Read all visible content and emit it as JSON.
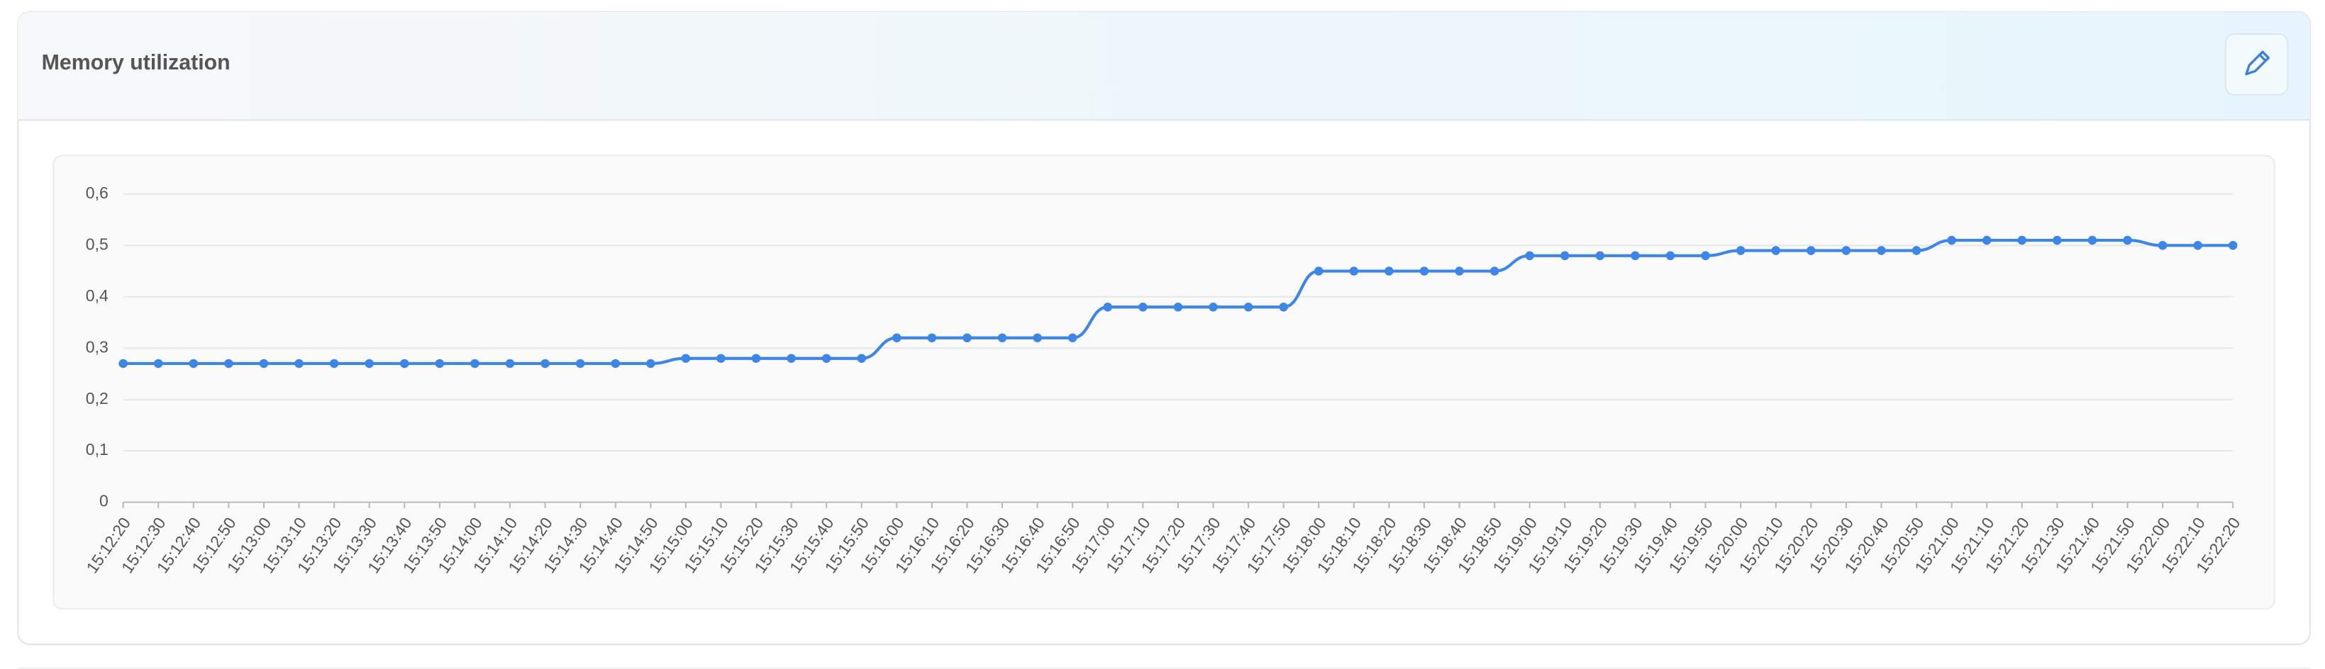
{
  "chart_data": {
    "type": "line",
    "title": "Memory utilization",
    "categories": [
      "15:12:20",
      "15:12:30",
      "15:12:40",
      "15:12:50",
      "15:13:00",
      "15:13:10",
      "15:13:20",
      "15:13:30",
      "15:13:40",
      "15:13:50",
      "15:14:00",
      "15:14:10",
      "15:14:20",
      "15:14:30",
      "15:14:40",
      "15:14:50",
      "15:15:00",
      "15:15:10",
      "15:15:20",
      "15:15:30",
      "15:15:40",
      "15:15:50",
      "15:16:00",
      "15:16:10",
      "15:16:20",
      "15:16:30",
      "15:16:40",
      "15:16:50",
      "15:17:00",
      "15:17:10",
      "15:17:20",
      "15:17:30",
      "15:17:40",
      "15:17:50",
      "15:18:00",
      "15:18:10",
      "15:18:20",
      "15:18:30",
      "15:18:40",
      "15:18:50",
      "15:19:00",
      "15:19:10",
      "15:19:20",
      "15:19:30",
      "15:19:40",
      "15:19:50",
      "15:20:00",
      "15:20:10",
      "15:20:20",
      "15:20:30",
      "15:20:40",
      "15:20:50",
      "15:21:00",
      "15:21:10",
      "15:21:20",
      "15:21:30",
      "15:21:40",
      "15:21:50",
      "15:22:00",
      "15:22:10",
      "15:22:20"
    ],
    "values": [
      0.27,
      0.27,
      0.27,
      0.27,
      0.27,
      0.27,
      0.27,
      0.27,
      0.27,
      0.27,
      0.27,
      0.27,
      0.27,
      0.27,
      0.27,
      0.27,
      0.28,
      0.28,
      0.28,
      0.28,
      0.28,
      0.28,
      0.32,
      0.32,
      0.32,
      0.32,
      0.32,
      0.32,
      0.38,
      0.38,
      0.38,
      0.38,
      0.38,
      0.38,
      0.45,
      0.45,
      0.45,
      0.45,
      0.45,
      0.45,
      0.48,
      0.48,
      0.48,
      0.48,
      0.48,
      0.48,
      0.49,
      0.49,
      0.49,
      0.49,
      0.49,
      0.49,
      0.51,
      0.51,
      0.51,
      0.51,
      0.51,
      0.51,
      0.5,
      0.5,
      0.5
    ],
    "color": "#3d85e6",
    "ylim": [
      0,
      0.6
    ],
    "yticks": [
      0,
      {
        "value": 0.1,
        "label": "0,1"
      },
      {
        "value": 0.2,
        "label": "0,2"
      },
      {
        "value": 0.3,
        "label": "0,3"
      },
      {
        "value": 0.4,
        "label": "0,4"
      },
      {
        "value": 0.5,
        "label": "0,5"
      },
      {
        "value": 0.6,
        "label": "0,6"
      }
    ],
    "grid": true
  }
}
